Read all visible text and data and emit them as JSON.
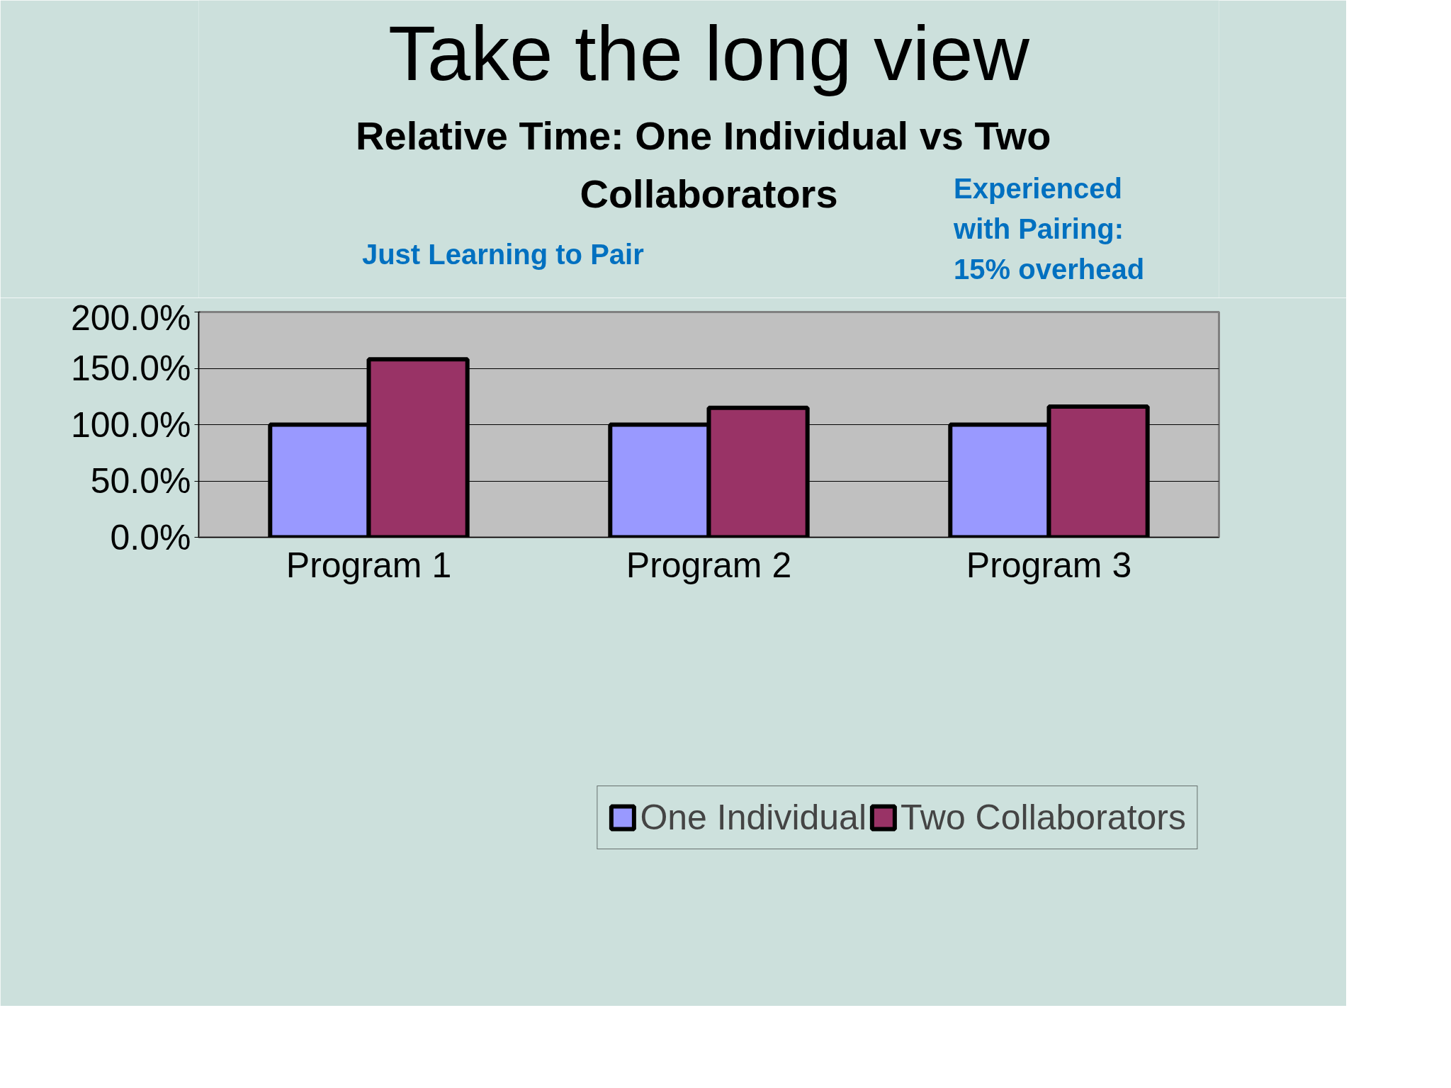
{
  "chart_data": {
    "type": "bar",
    "title": "Take the long view",
    "subtitle": "Relative Time:  One Individual vs Two\nCollaborators",
    "categories": [
      "Program 1",
      "Program 2",
      "Program 3"
    ],
    "series": [
      {
        "name": "One Individual",
        "color": "#9999ff",
        "values": [
          100,
          100,
          100
        ]
      },
      {
        "name": "Two Collaborators",
        "color": "#993366",
        "values": [
          158,
          115,
          116
        ]
      }
    ],
    "ylim": [
      0,
      200
    ],
    "yticks": [
      {
        "value": 0,
        "label": "0.0%"
      },
      {
        "value": 50,
        "label": "50.0%"
      },
      {
        "value": 100,
        "label": "100.0%"
      },
      {
        "value": 150,
        "label": "150.0%"
      },
      {
        "value": 200,
        "label": "200.0%"
      }
    ],
    "grid": "y",
    "legend": "bottom",
    "annotations": [
      "Just Learning to Pair",
      "Experienced\nwith Pairing:\n15% overhead"
    ]
  }
}
